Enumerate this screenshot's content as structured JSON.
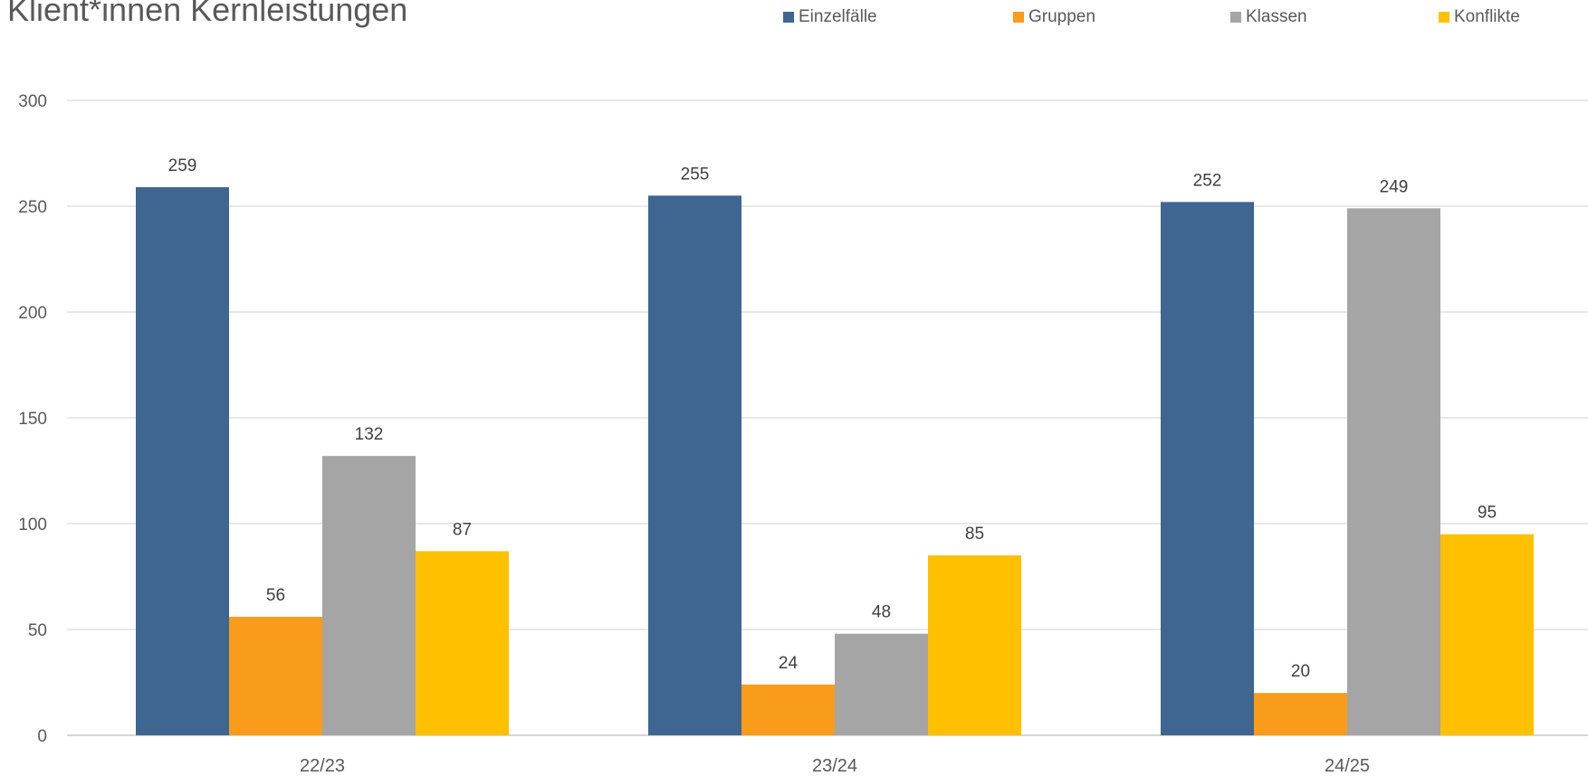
{
  "chart_data": {
    "type": "bar",
    "title": "Klient*innen Kernleistungen",
    "categories": [
      "22/23",
      "23/24",
      "24/25"
    ],
    "series": [
      {
        "name": "Einzelfälle",
        "color": "#3E6690",
        "values": [
          259,
          255,
          252
        ]
      },
      {
        "name": "Gruppen",
        "color": "#F99B1B",
        "values": [
          56,
          24,
          20
        ]
      },
      {
        "name": "Klassen",
        "color": "#A5A5A5",
        "values": [
          132,
          48,
          249
        ]
      },
      {
        "name": "Konflikte",
        "color": "#FFC000",
        "values": [
          87,
          85,
          95
        ]
      }
    ],
    "ylim": [
      0,
      300
    ],
    "yticks": [
      0,
      50,
      100,
      150,
      200,
      250,
      300
    ],
    "grid": true,
    "legend_position": "top-right",
    "data_labels": true
  }
}
